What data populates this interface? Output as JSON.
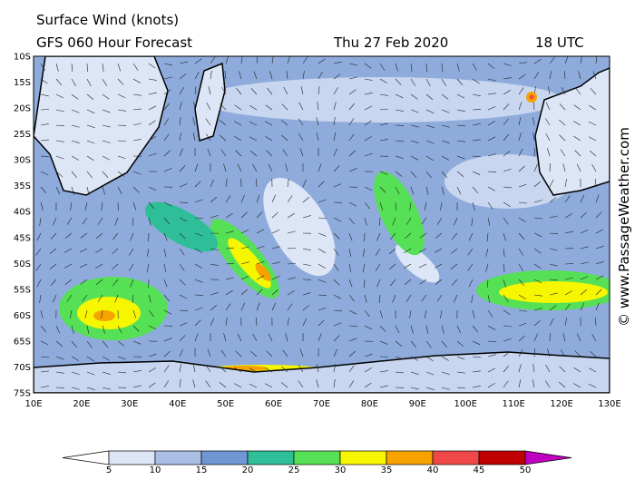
{
  "header": {
    "title": "Surface Wind (knots)",
    "subtitle": "GFS 060 Hour Forecast",
    "date": "Thu 27 Feb 2020",
    "time": "18 UTC"
  },
  "latitude_labels": [
    "10S",
    "15S",
    "20S",
    "25S",
    "30S",
    "35S",
    "40S",
    "45S",
    "50S",
    "55S",
    "60S",
    "65S",
    "70S",
    "75S"
  ],
  "longitude_labels": [
    "10E",
    "20E",
    "30E",
    "40E",
    "50E",
    "60E",
    "70E",
    "80E",
    "90E",
    "100E",
    "110E",
    "120E",
    "130E"
  ],
  "colorbar": {
    "ticks": [
      5,
      10,
      15,
      20,
      25,
      30,
      35,
      40,
      45,
      50
    ],
    "colors": [
      "#ffffff",
      "#dde6f6",
      "#a9bfe3",
      "#7096d3",
      "#2fbf98",
      "#55e055",
      "#f6f600",
      "#f6a300",
      "#f04848",
      "#c00000",
      "#c000c0"
    ]
  },
  "watermark": "© www.PassageWeather.com"
}
